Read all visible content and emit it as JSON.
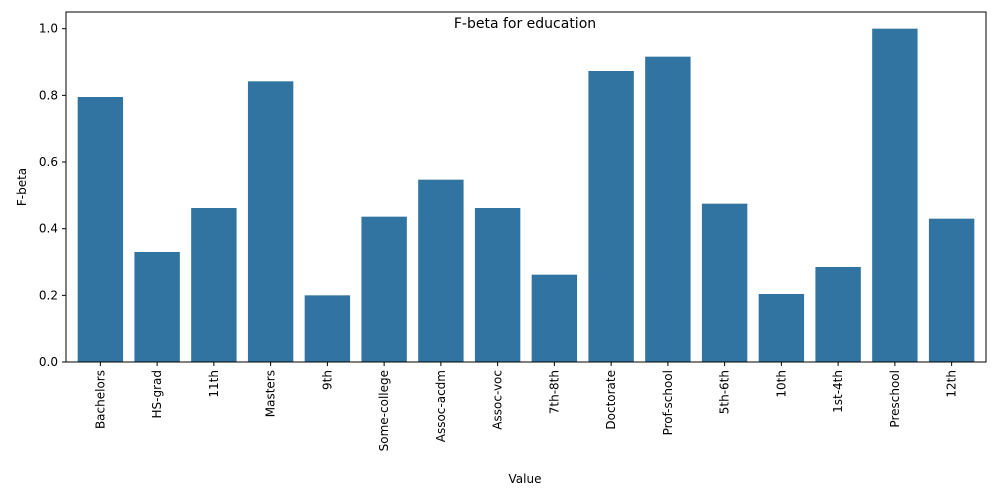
{
  "chart_data": {
    "type": "bar",
    "title": "F-beta for education",
    "xlabel": "Value",
    "ylabel": "F-beta",
    "categories": [
      "Bachelors",
      "HS-grad",
      "11th",
      "Masters",
      "9th",
      "Some-college",
      "Assoc-acdm",
      "Assoc-voc",
      "7th-8th",
      "Doctorate",
      "Prof-school",
      "5th-6th",
      "10th",
      "1st-4th",
      "Preschool",
      "12th"
    ],
    "values": [
      0.795,
      0.33,
      0.462,
      0.842,
      0.2,
      0.436,
      0.547,
      0.462,
      0.262,
      0.873,
      0.916,
      0.475,
      0.204,
      0.285,
      1.0,
      0.43
    ],
    "ylim": [
      0,
      1.05
    ],
    "yticks": [
      "0.0",
      "0.2",
      "0.4",
      "0.6",
      "0.8",
      "1.0"
    ],
    "bar_color": "#3274a1",
    "grid": false,
    "legend": "none"
  }
}
